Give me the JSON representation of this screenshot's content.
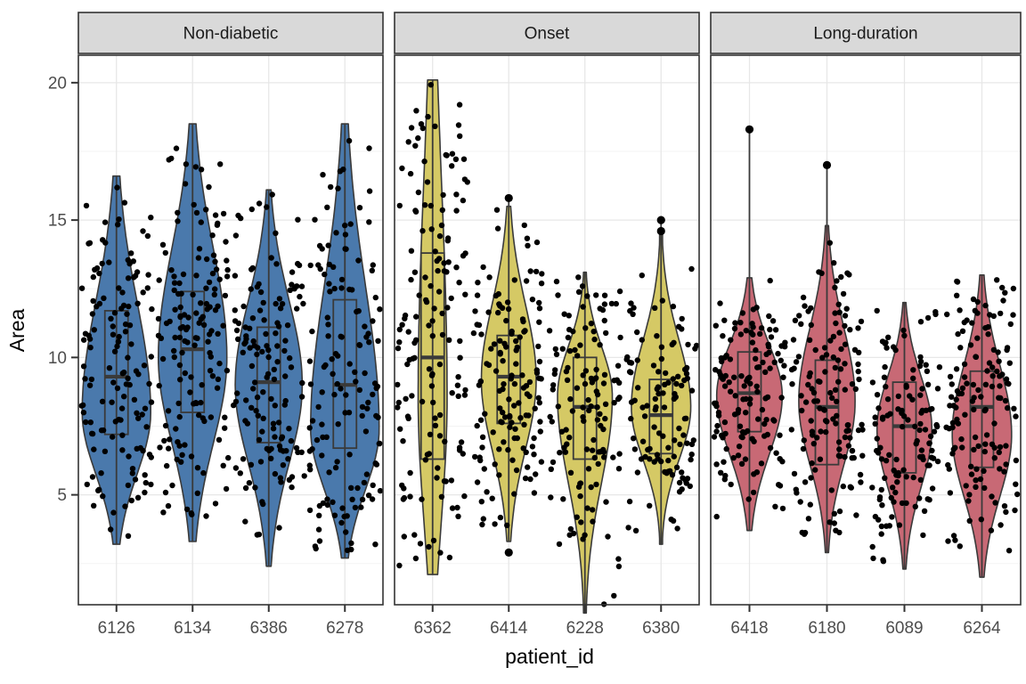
{
  "chart_data": {
    "type": "violin",
    "title": "",
    "xlabel": "patient_id",
    "ylabel": "Area",
    "y_ticks": [
      5,
      10,
      15,
      20
    ],
    "y_minor_ticks": [
      2.5,
      7.5,
      12.5,
      17.5
    ],
    "y_domain": [
      1.0,
      21.0
    ],
    "grid": true,
    "legend": "none",
    "style": {
      "panel_background": "#ffffff",
      "panel_border": "#333333",
      "strip_background": "#d9d9d9",
      "grid_major": "#e7e7e7",
      "grid_minor": "#f3f3f3",
      "violin_outline": "#3a3a3a",
      "point_color": "#000000"
    },
    "facets": [
      {
        "label": "Non-diabetic",
        "fill": "#4A79AC",
        "violins": [
          {
            "patient_id": "6126",
            "min": 3.2,
            "q1": 7.2,
            "median": 9.3,
            "q3": 11.7,
            "max": 16.6,
            "mode": 8.0,
            "rel_width": 0.9,
            "taper": 2.15,
            "n_points": 135,
            "outliers": [],
            "whisker_top": 16.6
          },
          {
            "patient_id": "6134",
            "min": 3.3,
            "q1": 8.0,
            "median": 10.3,
            "q3": 12.4,
            "max": 18.5,
            "mode": 10.0,
            "rel_width": 0.9,
            "taper": 2.15,
            "n_points": 150,
            "outliers": [],
            "whisker_top": 18.5
          },
          {
            "patient_id": "6386",
            "min": 2.4,
            "q1": 6.9,
            "median": 9.1,
            "q3": 11.1,
            "max": 16.1,
            "mode": 9.0,
            "rel_width": 0.88,
            "taper": 2.3,
            "n_points": 140,
            "outliers": [],
            "whisker_top": 16.1
          },
          {
            "patient_id": "6278",
            "min": 2.7,
            "q1": 6.7,
            "median": 9.0,
            "q3": 12.1,
            "max": 18.5,
            "mode": 7.4,
            "rel_width": 0.9,
            "taper": 2.15,
            "n_points": 140,
            "outliers": [],
            "whisker_top": 18.5
          }
        ]
      },
      {
        "label": "Onset",
        "fill": "#D5C965",
        "violins": [
          {
            "patient_id": "6362",
            "min": 2.1,
            "q1": 6.3,
            "median": 10.0,
            "q3": 13.8,
            "max": 20.1,
            "mode": 8.5,
            "rel_width": 0.38,
            "taper": 1.45,
            "n_points": 150,
            "outliers": [],
            "whisker_top": 20.1
          },
          {
            "patient_id": "6414",
            "min": 3.3,
            "q1": 7.6,
            "median": 9.3,
            "q3": 10.8,
            "max": 15.5,
            "mode": 9.2,
            "rel_width": 0.72,
            "taper": 2.3,
            "n_points": 140,
            "outliers": [
              15.8,
              2.9
            ],
            "whisker_top": 15.8
          },
          {
            "patient_id": "6228",
            "min": 0.7,
            "q1": 6.3,
            "median": 8.2,
            "q3": 10.0,
            "max": 13.1,
            "mode": 8.6,
            "rel_width": 0.72,
            "taper": 2.5,
            "n_points": 130,
            "outliers": [],
            "whisker_top": 13.1
          },
          {
            "patient_id": "6380",
            "min": 3.2,
            "q1": 6.5,
            "median": 7.9,
            "q3": 9.2,
            "max": 14.5,
            "mode": 8.2,
            "rel_width": 0.78,
            "taper": 2.6,
            "n_points": 115,
            "outliers": [
              15.0,
              14.6
            ],
            "whisker_top": 15.0
          }
        ]
      },
      {
        "label": "Long-duration",
        "fill": "#C86975",
        "violins": [
          {
            "patient_id": "6418",
            "min": 3.7,
            "q1": 7.3,
            "median": 8.7,
            "q3": 10.2,
            "max": 12.9,
            "mode": 8.6,
            "rel_width": 0.86,
            "taper": 2.3,
            "n_points": 135,
            "outliers": [
              18.3
            ],
            "whisker_top": 18.3
          },
          {
            "patient_id": "6180",
            "min": 2.9,
            "q1": 6.1,
            "median": 8.2,
            "q3": 9.9,
            "max": 14.8,
            "mode": 8.4,
            "rel_width": 0.74,
            "taper": 2.4,
            "n_points": 140,
            "outliers": [
              17.0
            ],
            "whisker_top": 17.0
          },
          {
            "patient_id": "6089",
            "min": 2.3,
            "q1": 5.8,
            "median": 7.5,
            "q3": 9.1,
            "max": 12.0,
            "mode": 7.4,
            "rel_width": 0.72,
            "taper": 2.4,
            "n_points": 125,
            "outliers": [],
            "whisker_top": 12.0
          },
          {
            "patient_id": "6264",
            "min": 2.0,
            "q1": 6.0,
            "median": 8.2,
            "q3": 9.5,
            "max": 13.0,
            "mode": 7.2,
            "rel_width": 0.78,
            "taper": 2.3,
            "n_points": 140,
            "outliers": [],
            "whisker_top": 13.0
          }
        ]
      }
    ]
  }
}
